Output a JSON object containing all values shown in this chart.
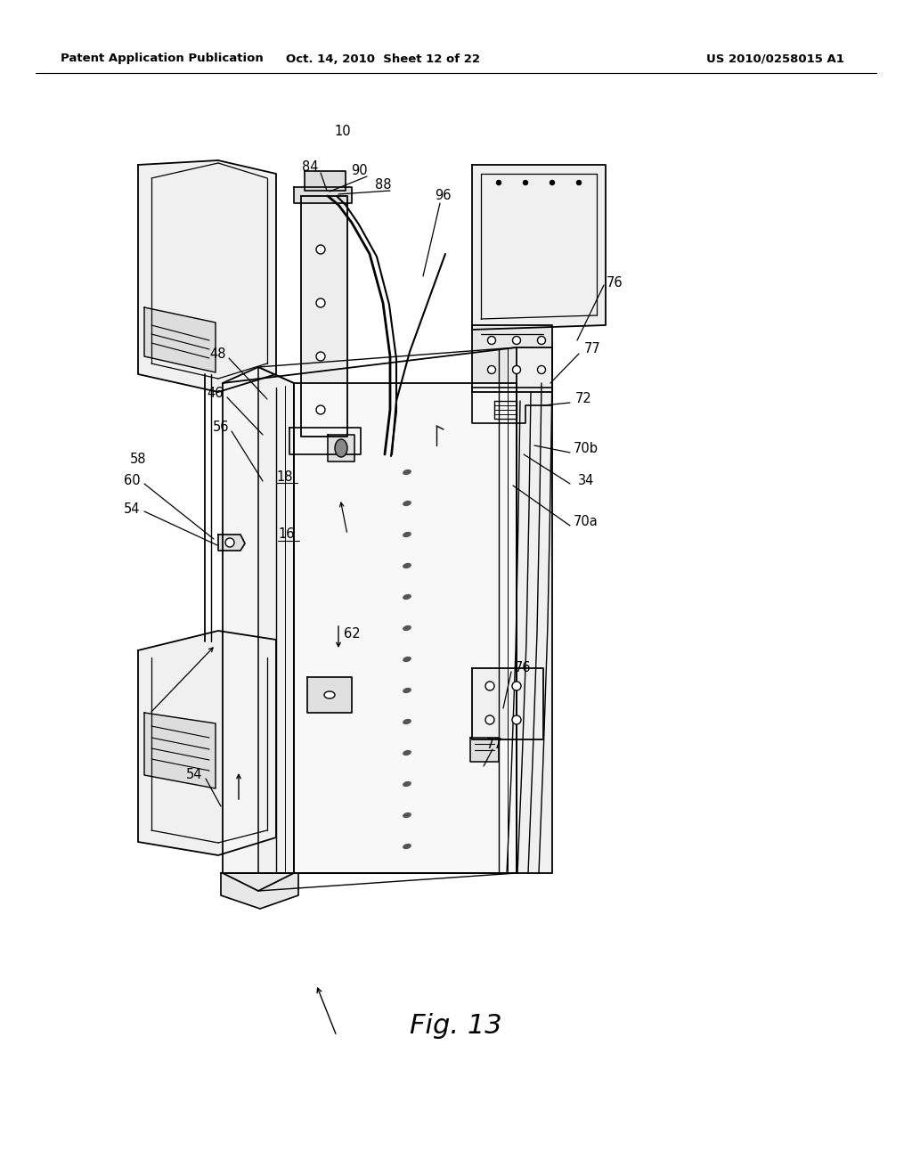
{
  "header_left": "Patent Application Publication",
  "header_center": "Oct. 14, 2010  Sheet 12 of 22",
  "header_right": "US 2010/0258015 A1",
  "figure_label": "Fig. 13",
  "bg": "#ffffff",
  "lc": "#000000",
  "header_fontsize": 9.5,
  "fig_fontsize": 22,
  "label_fontsize": 10.5
}
